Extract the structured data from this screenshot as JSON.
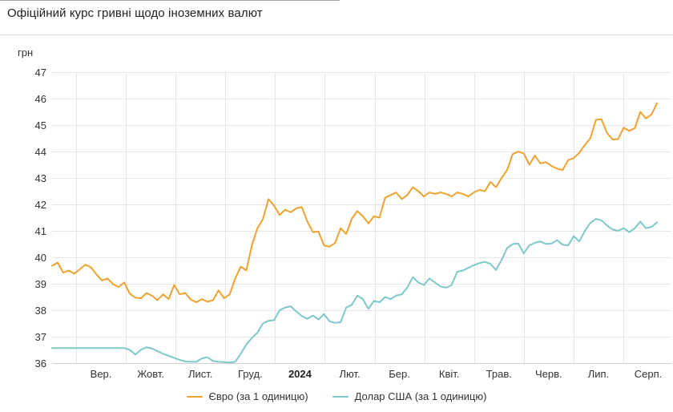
{
  "chart_data": {
    "type": "line",
    "title": "Офіційний курс гривні щодо іноземних валют",
    "ylabel": "грн",
    "ylim": [
      36,
      47
    ],
    "yticks": [
      47,
      46,
      45,
      44,
      43,
      42,
      41,
      40,
      39,
      38,
      37,
      36
    ],
    "grid": true,
    "legend_position": "bottom",
    "x_months": [
      {
        "label": "Вер.",
        "bold": false
      },
      {
        "label": "Жовт.",
        "bold": false
      },
      {
        "label": "Лист.",
        "bold": false
      },
      {
        "label": "Груд.",
        "bold": false
      },
      {
        "label": "2024",
        "bold": true
      },
      {
        "label": "Лют.",
        "bold": false
      },
      {
        "label": "Бер.",
        "bold": false
      },
      {
        "label": "Квіт.",
        "bold": false
      },
      {
        "label": "Трав.",
        "bold": false
      },
      {
        "label": "Черв.",
        "bold": false
      },
      {
        "label": "Лип.",
        "bold": false
      },
      {
        "label": "Серп.",
        "bold": false
      }
    ],
    "colors": {
      "grid": "#e6e6e6",
      "axis": "#d0d0d0",
      "text": "#333333"
    },
    "series": [
      {
        "key": "euro",
        "name": "Євро (за 1 одиницю)",
        "color": "#efa22f",
        "values": [
          39.68,
          39.8,
          39.42,
          39.5,
          39.38,
          39.55,
          39.72,
          39.62,
          39.35,
          39.12,
          39.2,
          38.98,
          38.88,
          39.05,
          38.62,
          38.48,
          38.45,
          38.65,
          38.55,
          38.38,
          38.6,
          38.42,
          38.95,
          38.6,
          38.65,
          38.4,
          38.3,
          38.42,
          38.32,
          38.38,
          38.75,
          38.45,
          38.6,
          39.2,
          39.65,
          39.5,
          40.45,
          41.1,
          41.45,
          42.2,
          41.95,
          41.6,
          41.8,
          41.7,
          41.85,
          41.9,
          41.35,
          40.95,
          40.98,
          40.45,
          40.4,
          40.55,
          41.1,
          40.88,
          41.45,
          41.75,
          41.55,
          41.28,
          41.55,
          41.5,
          42.25,
          42.35,
          42.45,
          42.2,
          42.35,
          42.65,
          42.5,
          42.3,
          42.45,
          42.4,
          42.45,
          42.4,
          42.3,
          42.45,
          42.4,
          42.3,
          42.45,
          42.55,
          42.5,
          42.85,
          42.65,
          43.0,
          43.3,
          43.9,
          44.0,
          43.92,
          43.5,
          43.85,
          43.55,
          43.6,
          43.45,
          43.35,
          43.3,
          43.68,
          43.75,
          43.95,
          44.25,
          44.5,
          45.2,
          45.22,
          44.7,
          44.45,
          44.47,
          44.9,
          44.78,
          44.88,
          45.5,
          45.25,
          45.4,
          45.82
        ]
      },
      {
        "key": "usd",
        "name": "Долар США (за 1 одиницю)",
        "color": "#7ec8ca",
        "values": [
          36.57,
          36.57,
          36.57,
          36.57,
          36.57,
          36.57,
          36.57,
          36.57,
          36.57,
          36.57,
          36.57,
          36.57,
          36.57,
          36.57,
          36.5,
          36.32,
          36.5,
          36.6,
          36.55,
          36.45,
          36.35,
          36.28,
          36.2,
          36.12,
          36.06,
          36.05,
          36.05,
          36.18,
          36.22,
          36.08,
          36.05,
          36.04,
          36.02,
          36.05,
          36.35,
          36.7,
          36.95,
          37.15,
          37.5,
          37.6,
          37.62,
          38.0,
          38.1,
          38.15,
          37.95,
          37.78,
          37.68,
          37.8,
          37.65,
          37.85,
          37.58,
          37.52,
          37.55,
          38.1,
          38.2,
          38.55,
          38.42,
          38.05,
          38.35,
          38.3,
          38.5,
          38.42,
          38.55,
          38.6,
          38.85,
          39.25,
          39.05,
          38.95,
          39.2,
          39.05,
          38.9,
          38.85,
          38.95,
          39.45,
          39.5,
          39.6,
          39.7,
          39.78,
          39.83,
          39.75,
          39.52,
          39.9,
          40.35,
          40.5,
          40.52,
          40.15,
          40.45,
          40.55,
          40.6,
          40.5,
          40.52,
          40.65,
          40.48,
          40.45,
          40.8,
          40.6,
          41.0,
          41.3,
          41.45,
          41.4,
          41.2,
          41.05,
          41.0,
          41.1,
          40.95,
          41.1,
          41.35,
          41.1,
          41.15,
          41.32
        ]
      }
    ]
  }
}
